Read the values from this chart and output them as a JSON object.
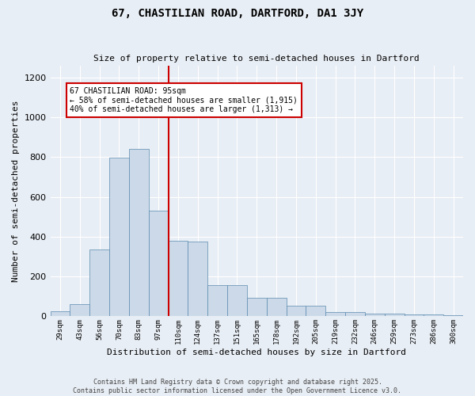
{
  "title1": "67, CHASTILIAN ROAD, DARTFORD, DA1 3JY",
  "title2": "Size of property relative to semi-detached houses in Dartford",
  "xlabel": "Distribution of semi-detached houses by size in Dartford",
  "ylabel": "Number of semi-detached properties",
  "bin_labels": [
    "29sqm",
    "43sqm",
    "56sqm",
    "70sqm",
    "83sqm",
    "97sqm",
    "110sqm",
    "124sqm",
    "137sqm",
    "151sqm",
    "165sqm",
    "178sqm",
    "192sqm",
    "205sqm",
    "219sqm",
    "232sqm",
    "246sqm",
    "259sqm",
    "273sqm",
    "286sqm",
    "300sqm"
  ],
  "bar_heights": [
    25,
    60,
    335,
    795,
    840,
    530,
    380,
    375,
    155,
    155,
    95,
    95,
    55,
    55,
    20,
    20,
    15,
    12,
    8,
    8,
    5
  ],
  "bar_color": "#ccd9e8",
  "bar_edge_color": "#5a8ab0",
  "property_line_x": 5.5,
  "property_sqm": 95,
  "pct_smaller": 58,
  "count_smaller": 1915,
  "pct_larger": 40,
  "count_larger": 1313,
  "annotation_box_color": "#ffffff",
  "annotation_box_edge_color": "#cc0000",
  "vline_color": "#cc0000",
  "background_color": "#e8eef5",
  "grid_color": "#ffffff",
  "footer_text": "Contains HM Land Registry data © Crown copyright and database right 2025.\nContains public sector information licensed under the Open Government Licence v3.0.",
  "ylim": [
    0,
    1260
  ],
  "yticks": [
    0,
    200,
    400,
    600,
    800,
    1000,
    1200
  ]
}
